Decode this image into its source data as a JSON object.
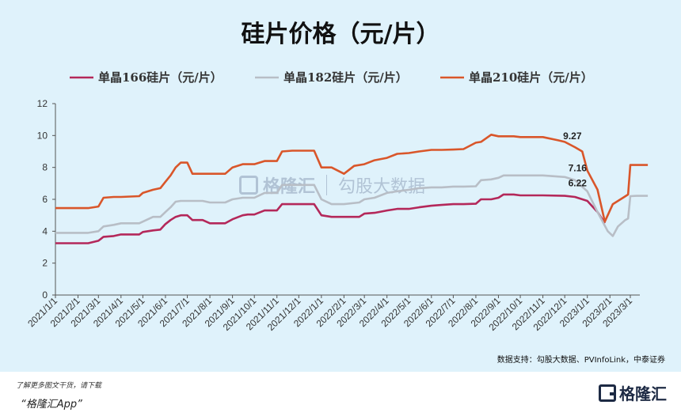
{
  "title": "硅片价格（元/片）",
  "source": "数据支持：勾股大数据、PVInfoLink，中泰证券",
  "footer": {
    "note": "了解更多图文干货，请下载",
    "app": "“格隆汇App”",
    "logo_text": "格隆汇"
  },
  "watermark": {
    "left": "格隆汇",
    "right": "勾股大数据"
  },
  "colors": {
    "s166": "#b4285a",
    "s182": "#b8bec6",
    "s210": "#d9562a",
    "background": "#dff2fb"
  },
  "chart_data": {
    "type": "line",
    "title": "硅片价格（元/片）",
    "ylim": [
      0,
      12
    ],
    "yticks": [
      0,
      2,
      4,
      6,
      8,
      10,
      12
    ],
    "xlim": [
      "2021/1/1",
      "2023/3/1"
    ],
    "xticks": [
      "2021/1/1",
      "2021/2/1",
      "2021/3/1",
      "2021/4/1",
      "2021/5/1",
      "2021/6/1",
      "2021/7/1",
      "2021/8/1",
      "2021/9/1",
      "2021/10/1",
      "2021/11/1",
      "2021/12/1",
      "2022/1/1",
      "2022/2/1",
      "2022/3/1",
      "2022/4/1",
      "2022/5/1",
      "2022/6/1",
      "2022/7/1",
      "2022/8/1",
      "2022/9/1",
      "2022/10/1",
      "2022/11/1",
      "2022/12/1",
      "2023/1/1",
      "2023/2/1",
      "2023/3/1"
    ],
    "legend_position": "top",
    "grid": false,
    "series": [
      {
        "name": "单晶166硅片（元/片）",
        "color": "#b4285a",
        "points": [
          [
            "2021/1/1",
            3.25
          ],
          [
            "2021/2/15",
            3.25
          ],
          [
            "2021/3/1",
            3.4
          ],
          [
            "2021/3/8",
            3.65
          ],
          [
            "2021/3/22",
            3.7
          ],
          [
            "2021/4/1",
            3.8
          ],
          [
            "2021/4/26",
            3.8
          ],
          [
            "2021/5/1",
            3.95
          ],
          [
            "2021/5/15",
            4.05
          ],
          [
            "2021/5/25",
            4.1
          ],
          [
            "2021/6/1",
            4.45
          ],
          [
            "2021/6/8",
            4.7
          ],
          [
            "2021/6/15",
            4.9
          ],
          [
            "2021/6/22",
            5.0
          ],
          [
            "2021/7/1",
            5.0
          ],
          [
            "2021/7/8",
            4.7
          ],
          [
            "2021/7/22",
            4.7
          ],
          [
            "2021/8/1",
            4.5
          ],
          [
            "2021/8/22",
            4.5
          ],
          [
            "2021/9/1",
            4.75
          ],
          [
            "2021/9/15",
            5.0
          ],
          [
            "2021/9/22",
            5.05
          ],
          [
            "2021/10/1",
            5.05
          ],
          [
            "2021/10/15",
            5.3
          ],
          [
            "2021/11/1",
            5.3
          ],
          [
            "2021/11/8",
            5.7
          ],
          [
            "2021/11/22",
            5.7
          ],
          [
            "2021/12/1",
            5.7
          ],
          [
            "2021/12/22",
            5.7
          ],
          [
            "2022/1/1",
            5.0
          ],
          [
            "2022/1/15",
            4.9
          ],
          [
            "2022/2/1",
            4.9
          ],
          [
            "2022/2/22",
            4.9
          ],
          [
            "2022/3/1",
            5.1
          ],
          [
            "2022/3/15",
            5.15
          ],
          [
            "2022/4/1",
            5.3
          ],
          [
            "2022/4/15",
            5.4
          ],
          [
            "2022/5/1",
            5.4
          ],
          [
            "2022/5/15",
            5.5
          ],
          [
            "2022/6/1",
            5.6
          ],
          [
            "2022/6/15",
            5.65
          ],
          [
            "2022/7/1",
            5.7
          ],
          [
            "2022/7/15",
            5.7
          ],
          [
            "2022/8/1",
            5.72
          ],
          [
            "2022/8/8",
            6.0
          ],
          [
            "2022/8/22",
            6.0
          ],
          [
            "2022/9/1",
            6.1
          ],
          [
            "2022/9/8",
            6.3
          ],
          [
            "2022/9/22",
            6.3
          ],
          [
            "2022/10/1",
            6.25
          ],
          [
            "2022/10/22",
            6.25
          ],
          [
            "2022/11/1",
            6.25
          ],
          [
            "2022/12/1",
            6.22
          ],
          [
            "2022/12/15",
            6.15
          ],
          [
            "2023/1/1",
            5.9
          ],
          [
            "2023/1/15",
            5.2
          ],
          [
            "2023/1/25",
            4.5
          ]
        ]
      },
      {
        "name": "单晶182硅片（元/片）",
        "color": "#b8bec6",
        "points": [
          [
            "2021/1/1",
            3.9
          ],
          [
            "2021/2/15",
            3.9
          ],
          [
            "2021/3/1",
            4.0
          ],
          [
            "2021/3/8",
            4.3
          ],
          [
            "2021/3/22",
            4.4
          ],
          [
            "2021/4/1",
            4.5
          ],
          [
            "2021/4/26",
            4.5
          ],
          [
            "2021/5/1",
            4.6
          ],
          [
            "2021/5/15",
            4.9
          ],
          [
            "2021/5/25",
            4.9
          ],
          [
            "2021/6/1",
            5.2
          ],
          [
            "2021/6/8",
            5.5
          ],
          [
            "2021/6/15",
            5.85
          ],
          [
            "2021/6/22",
            5.9
          ],
          [
            "2021/7/1",
            5.9
          ],
          [
            "2021/7/22",
            5.9
          ],
          [
            "2021/8/1",
            5.8
          ],
          [
            "2021/8/22",
            5.8
          ],
          [
            "2021/9/1",
            6.0
          ],
          [
            "2021/9/15",
            6.1
          ],
          [
            "2021/10/1",
            6.1
          ],
          [
            "2021/10/15",
            6.4
          ],
          [
            "2021/11/1",
            6.4
          ],
          [
            "2021/11/8",
            6.9
          ],
          [
            "2021/11/22",
            6.9
          ],
          [
            "2021/12/1",
            6.9
          ],
          [
            "2021/12/22",
            6.9
          ],
          [
            "2022/1/1",
            6.0
          ],
          [
            "2022/1/15",
            5.7
          ],
          [
            "2022/2/1",
            5.7
          ],
          [
            "2022/2/22",
            5.8
          ],
          [
            "2022/3/1",
            6.0
          ],
          [
            "2022/3/15",
            6.1
          ],
          [
            "2022/4/1",
            6.4
          ],
          [
            "2022/4/15",
            6.5
          ],
          [
            "2022/5/1",
            6.6
          ],
          [
            "2022/5/15",
            6.7
          ],
          [
            "2022/6/1",
            6.75
          ],
          [
            "2022/6/15",
            6.75
          ],
          [
            "2022/7/1",
            6.8
          ],
          [
            "2022/7/15",
            6.8
          ],
          [
            "2022/8/1",
            6.82
          ],
          [
            "2022/8/8",
            7.2
          ],
          [
            "2022/8/22",
            7.25
          ],
          [
            "2022/9/1",
            7.35
          ],
          [
            "2022/9/8",
            7.5
          ],
          [
            "2022/9/22",
            7.5
          ],
          [
            "2022/10/1",
            7.5
          ],
          [
            "2022/11/1",
            7.5
          ],
          [
            "2022/12/1",
            7.4
          ],
          [
            "2022/12/15",
            7.2
          ],
          [
            "2023/1/1",
            6.5
          ],
          [
            "2023/1/15",
            5.2
          ],
          [
            "2023/1/29",
            4.0
          ],
          [
            "2023/2/5",
            3.7
          ],
          [
            "2023/2/12",
            4.3
          ],
          [
            "2023/2/22",
            4.7
          ],
          [
            "2023/2/26",
            4.8
          ],
          [
            "2023/3/1",
            6.2
          ],
          [
            "2023/3/10",
            6.22
          ],
          [
            "2023/3/25",
            6.22
          ]
        ]
      },
      {
        "name": "单晶210硅片（元/片）",
        "color": "#d9562a",
        "points": [
          [
            "2021/1/1",
            5.45
          ],
          [
            "2021/2/15",
            5.45
          ],
          [
            "2021/3/1",
            5.55
          ],
          [
            "2021/3/8",
            6.1
          ],
          [
            "2021/3/22",
            6.15
          ],
          [
            "2021/4/1",
            6.15
          ],
          [
            "2021/4/26",
            6.2
          ],
          [
            "2021/5/1",
            6.4
          ],
          [
            "2021/5/15",
            6.6
          ],
          [
            "2021/5/25",
            6.7
          ],
          [
            "2021/6/1",
            7.1
          ],
          [
            "2021/6/8",
            7.5
          ],
          [
            "2021/6/15",
            8.0
          ],
          [
            "2021/6/22",
            8.3
          ],
          [
            "2021/7/1",
            8.3
          ],
          [
            "2021/7/8",
            7.6
          ],
          [
            "2021/7/22",
            7.6
          ],
          [
            "2021/8/1",
            7.6
          ],
          [
            "2021/8/22",
            7.6
          ],
          [
            "2021/9/1",
            8.0
          ],
          [
            "2021/9/15",
            8.2
          ],
          [
            "2021/10/1",
            8.2
          ],
          [
            "2021/10/15",
            8.4
          ],
          [
            "2021/11/1",
            8.4
          ],
          [
            "2021/11/8",
            9.0
          ],
          [
            "2021/11/22",
            9.05
          ],
          [
            "2021/12/1",
            9.05
          ],
          [
            "2021/12/22",
            9.05
          ],
          [
            "2022/1/1",
            8.0
          ],
          [
            "2022/1/15",
            8.0
          ],
          [
            "2022/2/1",
            7.6
          ],
          [
            "2022/2/15",
            8.1
          ],
          [
            "2022/3/1",
            8.2
          ],
          [
            "2022/3/15",
            8.45
          ],
          [
            "2022/4/1",
            8.6
          ],
          [
            "2022/4/15",
            8.85
          ],
          [
            "2022/5/1",
            8.9
          ],
          [
            "2022/5/15",
            9.0
          ],
          [
            "2022/6/1",
            9.1
          ],
          [
            "2022/6/15",
            9.1
          ],
          [
            "2022/7/1",
            9.12
          ],
          [
            "2022/7/15",
            9.15
          ],
          [
            "2022/8/1",
            9.55
          ],
          [
            "2022/8/8",
            9.6
          ],
          [
            "2022/8/22",
            10.05
          ],
          [
            "2022/9/1",
            9.95
          ],
          [
            "2022/9/22",
            9.95
          ],
          [
            "2022/10/1",
            9.9
          ],
          [
            "2022/11/1",
            9.9
          ],
          [
            "2022/11/22",
            9.7
          ],
          [
            "2022/12/1",
            9.6
          ],
          [
            "2022/12/15",
            9.27
          ],
          [
            "2022/12/25",
            9.0
          ],
          [
            "2023/1/1",
            7.8
          ],
          [
            "2023/1/15",
            6.6
          ],
          [
            "2023/1/25",
            4.6
          ],
          [
            "2023/2/5",
            5.7
          ],
          [
            "2023/2/19",
            6.1
          ],
          [
            "2023/2/26",
            6.3
          ],
          [
            "2023/3/1",
            8.15
          ],
          [
            "2023/3/10",
            8.15
          ],
          [
            "2023/3/25",
            8.15
          ]
        ]
      }
    ],
    "data_labels": [
      {
        "text": "9.27",
        "x": "2022/12/1",
        "y": 9.27,
        "series": "单晶210硅片（元/片）"
      },
      {
        "text": "7.16",
        "x": "2022/12/8",
        "y": 7.16,
        "series": "单晶182硅片（元/片）"
      },
      {
        "text": "6.22",
        "x": "2022/12/8",
        "y": 6.22,
        "series": "单晶166硅片（元/片）"
      }
    ]
  }
}
